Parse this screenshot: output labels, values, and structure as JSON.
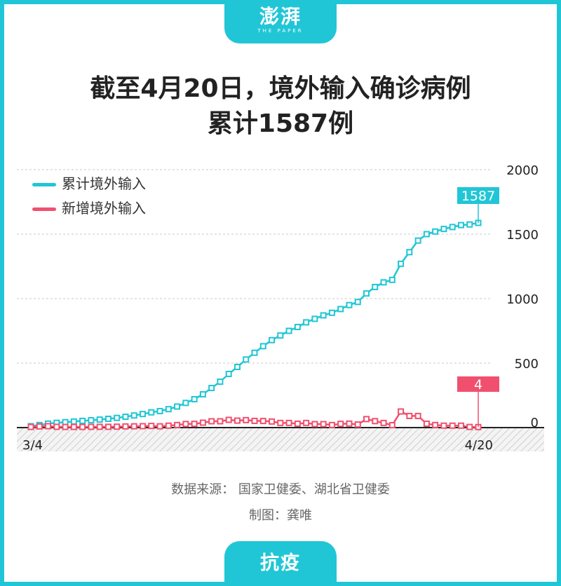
{
  "header": {
    "logo": "澎湃",
    "logo_sub": "THE PAPER"
  },
  "title_line1": "截至4月20日，境外输入确诊病例",
  "title_line2": "累计1587例",
  "footer": {
    "source": "数据来源：  国家卫健委、湖北省卫健委",
    "credit": "制图：龚唯",
    "tab": "抗疫"
  },
  "colors": {
    "accent": "#21c6d6",
    "series_cumulative": "#21c6d6",
    "series_new": "#f0506e"
  },
  "chart_data": {
    "type": "line",
    "x_start": "3/4",
    "x_end": "4/20",
    "x_tick_labels": [
      "3/4",
      "4/20"
    ],
    "ylim": [
      0,
      2000
    ],
    "y_ticks": [
      0,
      500,
      1000,
      1500,
      2000
    ],
    "grid": true,
    "legend_position": "top-left",
    "series": [
      {
        "name": "累计境外输入",
        "color": "#21c6d6",
        "values": [
          11,
          20,
          31,
          37,
          42,
          47,
          52,
          57,
          62,
          68,
          75,
          84,
          94,
          105,
          118,
          128,
          143,
          163,
          191,
          220,
          258,
          307,
          356,
          416,
          470,
          528,
          580,
          631,
          678,
          714,
          750,
          780,
          816,
          843,
          870,
          890,
          919,
          950,
          974,
          1040,
          1090,
          1126,
          1145,
          1270,
          1360,
          1450,
          1500,
          1520,
          1540,
          1555,
          1570,
          1575,
          1587
        ],
        "end_label": "1587"
      },
      {
        "name": "新增境外输入",
        "color": "#f0506e",
        "values": [
          5,
          9,
          11,
          6,
          5,
          5,
          5,
          6,
          6,
          6,
          7,
          9,
          10,
          11,
          13,
          10,
          15,
          20,
          28,
          29,
          38,
          49,
          49,
          60,
          54,
          58,
          52,
          51,
          47,
          36,
          36,
          30,
          36,
          27,
          27,
          20,
          29,
          31,
          24,
          66,
          50,
          36,
          19,
          125,
          90,
          90,
          30,
          20,
          15,
          15,
          15,
          5,
          4
        ],
        "end_label": "4"
      }
    ]
  }
}
